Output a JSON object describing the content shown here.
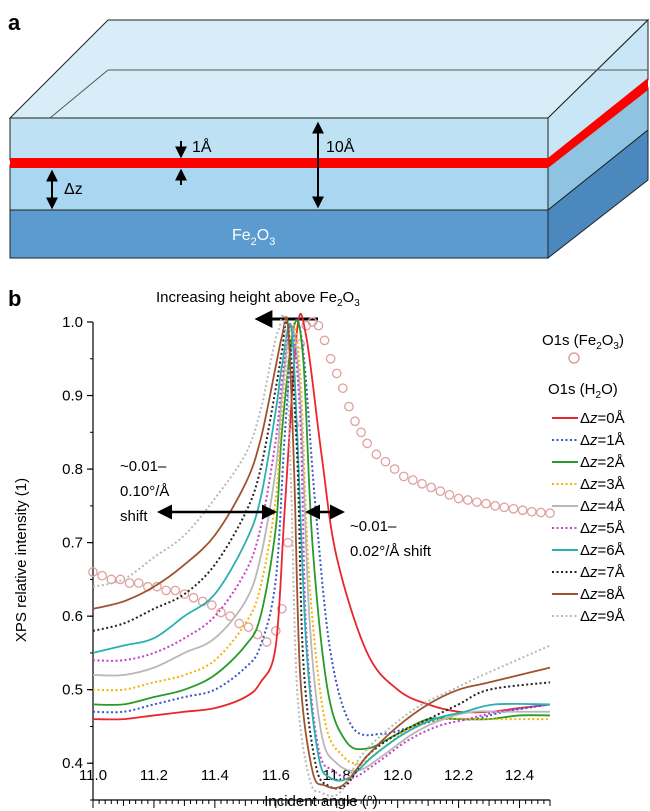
{
  "panel_a": {
    "label": "a",
    "substrate": {
      "main": "Fe",
      "sub1": "2",
      "mid": "O",
      "sub2": "3"
    },
    "thickness_label": "1Å",
    "total_label": "10Å",
    "dz_label": "Δz"
  },
  "panel_b": {
    "label": "b",
    "arrow_text": {
      "main": "Increasing height above Fe",
      "sub1": "2",
      "mid": "O",
      "sub2": "3"
    },
    "left_shift": [
      "~0.01–",
      "0.10°/Å",
      "shift"
    ],
    "right_shift": [
      "~0.01–",
      "0.02°/Å shift"
    ],
    "legend_fe": {
      "main": "O1s (Fe",
      "sub1": "2",
      "mid": "O",
      "sub2": "3",
      "end": ")"
    },
    "legend_h2o": {
      "main": "O1s (H",
      "sub1": "2",
      "end": "O)"
    },
    "legend_prefix": "Δ",
    "legend_var": "z"
  },
  "colors": {
    "layer_top": "#d7eef9",
    "layer_mid": "#a9d6f0",
    "substrate": "#5b9bcf",
    "red_layer": "#ff0000",
    "fe_marker": "#e0a0a0"
  },
  "chart_data": {
    "type": "line",
    "xlabel": "Incident angle (°)",
    "ylabel": "XPS relative intensity (1)",
    "xlim": [
      11.0,
      12.5
    ],
    "ylim": [
      0.35,
      1.0
    ],
    "xticks": [
      "11.0",
      "11.2",
      "11.4",
      "11.6",
      "11.8",
      "12.0",
      "12.2",
      "12.4"
    ],
    "yticks": [
      "0.4",
      "0.5",
      "0.6",
      "0.7",
      "0.8",
      "0.9",
      "1.0"
    ],
    "legend_placement": "right",
    "series": [
      {
        "name": "O1s (Fe2O3)",
        "style": "circle",
        "color": "#e0a0a0",
        "x": [
          11.0,
          11.03,
          11.06,
          11.09,
          11.12,
          11.15,
          11.18,
          11.21,
          11.24,
          11.27,
          11.3,
          11.33,
          11.36,
          11.39,
          11.42,
          11.45,
          11.48,
          11.51,
          11.54,
          11.57,
          11.6,
          11.62,
          11.64,
          11.66,
          11.68,
          11.7,
          11.72,
          11.74,
          11.76,
          11.78,
          11.8,
          11.82,
          11.84,
          11.86,
          11.88,
          11.9,
          11.93,
          11.96,
          11.99,
          12.02,
          12.05,
          12.08,
          12.11,
          12.14,
          12.17,
          12.2,
          12.23,
          12.26,
          12.29,
          12.32,
          12.35,
          12.38,
          12.41,
          12.44,
          12.47,
          12.5
        ],
        "y": [
          0.66,
          0.655,
          0.65,
          0.65,
          0.645,
          0.645,
          0.64,
          0.64,
          0.635,
          0.635,
          0.63,
          0.625,
          0.62,
          0.615,
          0.605,
          0.6,
          0.59,
          0.585,
          0.575,
          0.565,
          0.58,
          0.61,
          0.7,
          0.86,
          0.97,
          0.995,
          1.0,
          0.995,
          0.975,
          0.95,
          0.93,
          0.91,
          0.885,
          0.865,
          0.85,
          0.835,
          0.82,
          0.81,
          0.8,
          0.79,
          0.785,
          0.78,
          0.775,
          0.77,
          0.765,
          0.76,
          0.758,
          0.755,
          0.753,
          0.75,
          0.748,
          0.746,
          0.744,
          0.742,
          0.741,
          0.74
        ]
      },
      {
        "name": "Δz=0Å",
        "color": "#e8262c",
        "dash": "solid",
        "x": [
          11.0,
          11.1,
          11.2,
          11.3,
          11.4,
          11.5,
          11.55,
          11.6,
          11.63,
          11.67,
          11.7,
          11.75,
          11.8,
          11.9,
          12.0,
          12.1,
          12.2,
          12.3,
          12.4,
          12.5
        ],
        "y": [
          0.46,
          0.46,
          0.465,
          0.47,
          0.475,
          0.49,
          0.51,
          0.56,
          0.75,
          0.99,
          0.98,
          0.82,
          0.68,
          0.55,
          0.5,
          0.48,
          0.47,
          0.47,
          0.475,
          0.48
        ]
      },
      {
        "name": "Δz=1Å",
        "color": "#3556c8",
        "dash": "dot",
        "x": [
          11.0,
          11.1,
          11.2,
          11.3,
          11.4,
          11.5,
          11.55,
          11.6,
          11.63,
          11.66,
          11.69,
          11.73,
          11.78,
          11.85,
          11.95,
          12.05,
          12.15,
          12.25,
          12.35,
          12.5
        ],
        "y": [
          0.47,
          0.47,
          0.48,
          0.49,
          0.5,
          0.53,
          0.56,
          0.65,
          0.85,
          0.995,
          0.96,
          0.75,
          0.55,
          0.45,
          0.44,
          0.45,
          0.46,
          0.46,
          0.47,
          0.48
        ]
      },
      {
        "name": "Δz=2Å",
        "color": "#2a9a2a",
        "dash": "solid",
        "x": [
          11.0,
          11.1,
          11.2,
          11.3,
          11.4,
          11.5,
          11.55,
          11.6,
          11.62,
          11.66,
          11.69,
          11.72,
          11.77,
          11.83,
          11.9,
          12.0,
          12.1,
          12.2,
          12.3,
          12.4,
          12.5
        ],
        "y": [
          0.48,
          0.48,
          0.49,
          0.5,
          0.52,
          0.56,
          0.6,
          0.72,
          0.85,
          0.995,
          0.95,
          0.7,
          0.5,
          0.43,
          0.42,
          0.44,
          0.46,
          0.46,
          0.46,
          0.465,
          0.465
        ]
      },
      {
        "name": "Δz=3Å",
        "color": "#f0b400",
        "dash": "dot",
        "x": [
          11.0,
          11.1,
          11.2,
          11.3,
          11.4,
          11.5,
          11.55,
          11.6,
          11.62,
          11.65,
          11.68,
          11.71,
          11.76,
          11.82,
          11.88,
          11.95,
          12.05,
          12.15,
          12.25,
          12.35,
          12.5
        ],
        "y": [
          0.5,
          0.5,
          0.51,
          0.52,
          0.54,
          0.59,
          0.64,
          0.76,
          0.88,
          0.995,
          0.93,
          0.65,
          0.46,
          0.41,
          0.4,
          0.42,
          0.45,
          0.46,
          0.46,
          0.46,
          0.46
        ]
      },
      {
        "name": "Δz=4Å",
        "color": "#b8b8b8",
        "dash": "solid",
        "x": [
          11.0,
          11.1,
          11.2,
          11.3,
          11.4,
          11.5,
          11.55,
          11.6,
          11.62,
          11.65,
          11.68,
          11.71,
          11.75,
          11.8,
          11.87,
          11.95,
          12.05,
          12.15,
          12.25,
          12.35,
          12.5
        ],
        "y": [
          0.52,
          0.52,
          0.53,
          0.55,
          0.57,
          0.62,
          0.68,
          0.8,
          0.9,
          0.995,
          0.9,
          0.6,
          0.44,
          0.4,
          0.39,
          0.41,
          0.44,
          0.46,
          0.47,
          0.47,
          0.47
        ]
      },
      {
        "name": "Δz=5Å",
        "color": "#cc3ccc",
        "dash": "dot",
        "x": [
          11.0,
          11.1,
          11.2,
          11.3,
          11.4,
          11.5,
          11.55,
          11.6,
          11.62,
          11.65,
          11.68,
          11.7,
          11.74,
          11.79,
          11.85,
          11.93,
          12.03,
          12.13,
          12.23,
          12.33,
          12.5
        ],
        "y": [
          0.54,
          0.54,
          0.55,
          0.57,
          0.6,
          0.66,
          0.72,
          0.84,
          0.92,
          0.995,
          0.87,
          0.58,
          0.42,
          0.39,
          0.38,
          0.4,
          0.43,
          0.45,
          0.46,
          0.47,
          0.48
        ]
      },
      {
        "name": "Δz=6Å",
        "color": "#2ab0b0",
        "dash": "solid",
        "x": [
          11.0,
          11.1,
          11.2,
          11.3,
          11.4,
          11.5,
          11.55,
          11.6,
          11.62,
          11.65,
          11.67,
          11.7,
          11.74,
          11.78,
          11.84,
          11.92,
          12.02,
          12.12,
          12.22,
          12.32,
          12.5
        ],
        "y": [
          0.55,
          0.56,
          0.57,
          0.6,
          0.63,
          0.7,
          0.76,
          0.88,
          0.94,
          0.995,
          0.85,
          0.56,
          0.41,
          0.38,
          0.38,
          0.41,
          0.44,
          0.46,
          0.47,
          0.48,
          0.48
        ]
      },
      {
        "name": "Δz=7Å",
        "color": "#222222",
        "dash": "dot",
        "x": [
          11.0,
          11.1,
          11.2,
          11.3,
          11.4,
          11.5,
          11.55,
          11.6,
          11.62,
          11.64,
          11.67,
          11.69,
          11.73,
          11.77,
          11.83,
          11.9,
          12.0,
          12.1,
          12.2,
          12.3,
          12.5
        ],
        "y": [
          0.58,
          0.59,
          0.61,
          0.63,
          0.67,
          0.74,
          0.8,
          0.91,
          0.96,
          0.995,
          0.82,
          0.54,
          0.4,
          0.37,
          0.37,
          0.41,
          0.44,
          0.46,
          0.48,
          0.5,
          0.51
        ]
      },
      {
        "name": "Δz=8Å",
        "color": "#a0522d",
        "dash": "solid",
        "x": [
          11.0,
          11.1,
          11.2,
          11.3,
          11.4,
          11.5,
          11.55,
          11.6,
          11.62,
          11.64,
          11.66,
          11.68,
          11.72,
          11.76,
          11.82,
          11.9,
          12.0,
          12.1,
          12.2,
          12.3,
          12.5
        ],
        "y": [
          0.61,
          0.62,
          0.64,
          0.67,
          0.71,
          0.78,
          0.84,
          0.94,
          0.98,
          0.995,
          0.8,
          0.52,
          0.39,
          0.37,
          0.37,
          0.41,
          0.45,
          0.48,
          0.5,
          0.51,
          0.53
        ]
      },
      {
        "name": "Δz=9Å",
        "color": "#b8b8b8",
        "dash": "dot",
        "x": [
          11.0,
          11.1,
          11.2,
          11.3,
          11.4,
          11.5,
          11.55,
          11.59,
          11.61,
          11.63,
          11.65,
          11.67,
          11.71,
          11.75,
          11.81,
          11.88,
          11.98,
          12.08,
          12.18,
          12.28,
          12.5
        ],
        "y": [
          0.64,
          0.65,
          0.68,
          0.71,
          0.76,
          0.82,
          0.88,
          0.96,
          0.99,
          0.995,
          0.78,
          0.5,
          0.38,
          0.36,
          0.36,
          0.41,
          0.45,
          0.48,
          0.5,
          0.52,
          0.56
        ]
      }
    ]
  }
}
